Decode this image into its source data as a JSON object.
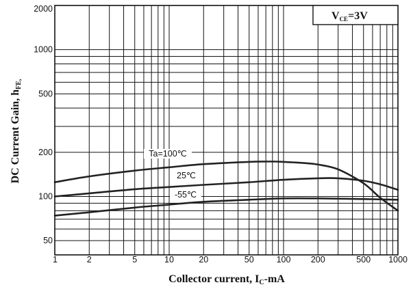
{
  "chart_data": {
    "type": "line",
    "xscale": "log",
    "yscale": "log",
    "xlim": [
      1,
      1000
    ],
    "ylim": [
      40,
      2000
    ],
    "grid": true,
    "x_ticks": [
      "1",
      "2",
      "5",
      "10",
      "20",
      "50",
      "100",
      "200",
      "500",
      "1000"
    ],
    "y_ticks": [
      "2000",
      "1000",
      "500",
      "200",
      "100",
      "50"
    ],
    "ylabel": {
      "main": "DC Current Gain, h",
      "sub": "FE,"
    },
    "xlabel": {
      "main": "Collector current, I",
      "sub": "C",
      "tail": "-mA"
    },
    "annotation": {
      "main": "V",
      "sub": "CE",
      "tail": "=3V"
    },
    "series": [
      {
        "name": "Ta=100℃",
        "x": [
          1,
          2,
          5,
          10,
          20,
          50,
          80,
          100,
          150,
          200,
          300,
          500,
          700,
          1000
        ],
        "y": [
          125,
          137,
          150,
          158,
          166,
          172,
          173,
          172,
          169,
          165,
          153,
          123,
          98,
          80
        ]
      },
      {
        "name": "25℃",
        "x": [
          1,
          2,
          5,
          10,
          20,
          50,
          100,
          200,
          300,
          500,
          700,
          1000
        ],
        "y": [
          100,
          105,
          112,
          116,
          120,
          125,
          130,
          133,
          133,
          128,
          121,
          111
        ]
      },
      {
        "name": "-55℃",
        "x": [
          1,
          2,
          5,
          10,
          20,
          50,
          100,
          200,
          500,
          1000
        ],
        "y": [
          74,
          78,
          84,
          88,
          92,
          95,
          97,
          97,
          96,
          95
        ]
      }
    ]
  }
}
